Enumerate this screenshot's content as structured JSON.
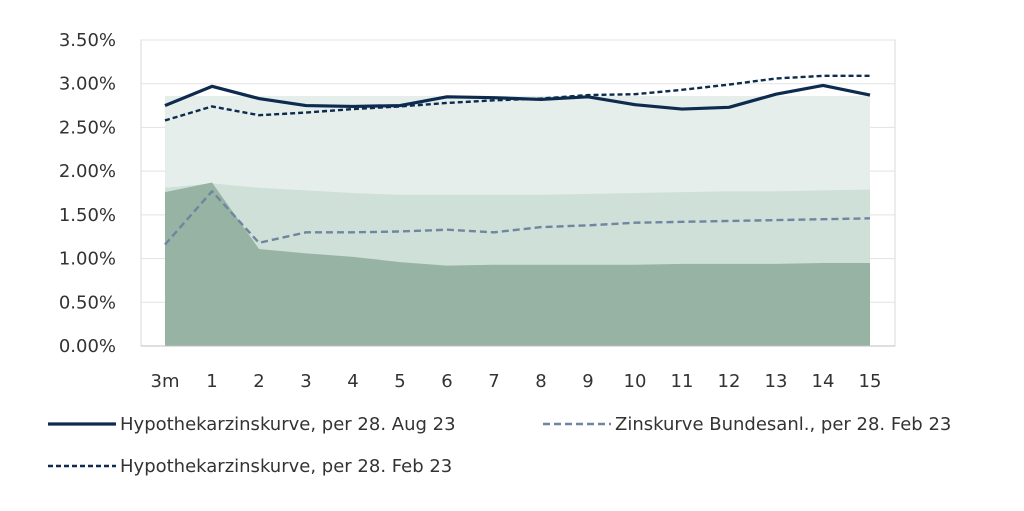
{
  "chart_data": {
    "type": "line",
    "title": "",
    "xlabel": "",
    "ylabel": "",
    "categories": [
      "3m",
      "1",
      "2",
      "3",
      "4",
      "5",
      "6",
      "7",
      "8",
      "9",
      "10",
      "11",
      "12",
      "13",
      "14",
      "15"
    ],
    "ylim": [
      0,
      0.035
    ],
    "y_ticks": [
      "0.00%",
      "0.50%",
      "1.00%",
      "1.50%",
      "2.00%",
      "2.50%",
      "3.00%",
      "3.50%"
    ],
    "y_tick_values": [
      0,
      0.005,
      0.01,
      0.015,
      0.02,
      0.025,
      0.03,
      0.035
    ],
    "grid": "horizontal",
    "legend_position": "bottom",
    "bands": [
      {
        "upper": [
          0.0286,
          0.0286,
          0.0286,
          0.0286,
          0.0286,
          0.0286,
          0.0286,
          0.0286,
          0.0286,
          0.0286,
          0.0286,
          0.0286,
          0.0286,
          0.0286,
          0.0286,
          0.0286
        ],
        "color": "#e6eeeb"
      },
      {
        "upper": [
          0.0181,
          0.0186,
          0.0181,
          0.0178,
          0.0175,
          0.0173,
          0.0173,
          0.0173,
          0.0173,
          0.0174,
          0.0175,
          0.0176,
          0.0177,
          0.0177,
          0.0178,
          0.0179
        ],
        "color": "#cfe0d9"
      },
      {
        "upper": [
          0.0176,
          0.0187,
          0.0111,
          0.0106,
          0.0102,
          0.0096,
          0.0092,
          0.0093,
          0.0093,
          0.0093,
          0.0093,
          0.0094,
          0.0094,
          0.0094,
          0.0095,
          0.0095
        ],
        "color": "#97b3a3"
      }
    ],
    "series": [
      {
        "name": "Hypothekarzinskurve, per 28. Aug 23",
        "values": [
          0.0275,
          0.0297,
          0.0283,
          0.0275,
          0.0274,
          0.0275,
          0.0285,
          0.0284,
          0.0282,
          0.0285,
          0.0276,
          0.0271,
          0.0273,
          0.0288,
          0.0298,
          0.0287
        ],
        "color": "#0d2b4e",
        "dash": "solid"
      },
      {
        "name": "Zinskurve Bundesanl., per 28. Feb 23",
        "values": [
          0.0116,
          0.0177,
          0.0118,
          0.013,
          0.013,
          0.0131,
          0.0133,
          0.013,
          0.0136,
          0.0138,
          0.0141,
          0.0142,
          0.0143,
          0.0144,
          0.0145,
          0.0146
        ],
        "color": "#6f85a0",
        "dash": "dashed"
      },
      {
        "name": "Hypothekarzinskurve, per 28. Feb 23",
        "values": [
          0.0258,
          0.0274,
          0.0264,
          0.0267,
          0.0271,
          0.0274,
          0.0278,
          0.0281,
          0.0283,
          0.0287,
          0.0288,
          0.0293,
          0.0299,
          0.0306,
          0.0309,
          0.0309
        ],
        "color": "#0d2b4e",
        "dash": "dotted"
      }
    ]
  }
}
